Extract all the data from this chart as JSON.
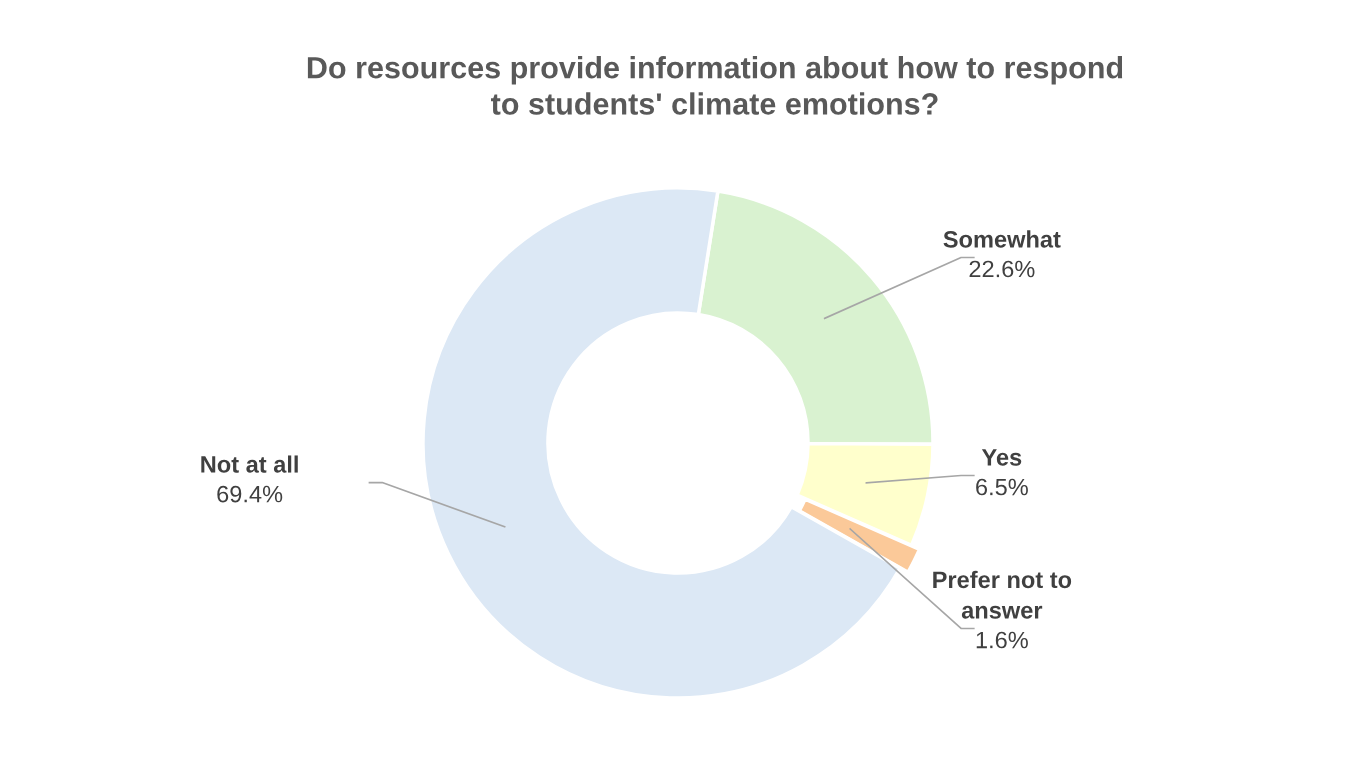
{
  "chart_data": {
    "type": "donut",
    "title": "Do resources provide information about how to respond to students' climate emotions?",
    "categories": [
      "Somewhat",
      "Yes",
      "Prefer not to answer",
      "Not at all"
    ],
    "values": [
      22.6,
      6.5,
      1.6,
      69.4
    ],
    "value_labels": [
      "22.6%",
      "6.5%",
      "1.6%",
      "69.4%"
    ],
    "colors": [
      "#d9f2d0",
      "#ffffcc",
      "#fbc999",
      "#dce8f5"
    ],
    "legend": false
  }
}
